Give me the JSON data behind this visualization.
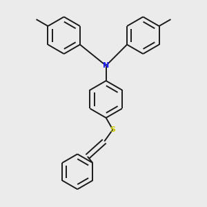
{
  "background_color": "#ebebeb",
  "bond_color": "#1a1a1a",
  "n_color": "#2020ff",
  "s_color": "#cccc00",
  "lw": 1.4,
  "dbl_sep": 0.022,
  "ring_r": 0.088,
  "figsize": [
    3.0,
    3.0
  ],
  "dpi": 100
}
